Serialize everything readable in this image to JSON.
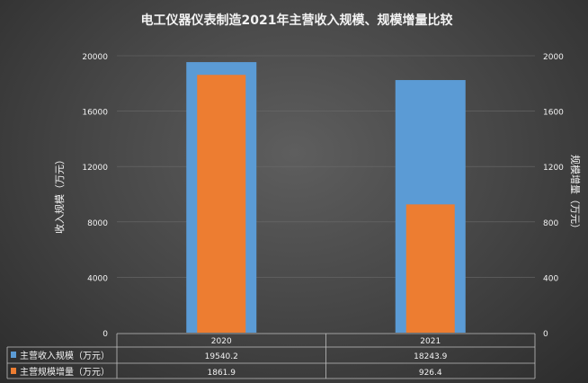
{
  "chart_data": {
    "type": "bar",
    "title": "电工仪器仪表制造2021年主营收入规模、规模增量比较",
    "categories": [
      "2020",
      "2021"
    ],
    "series": [
      {
        "name": "主营收入规模（万元）",
        "values": [
          19540.2,
          18243.9
        ],
        "color": "#5b9bd5",
        "axis": "left"
      },
      {
        "name": "主营规模增量（万元）",
        "values": [
          1861.9,
          926.4
        ],
        "color": "#ed7d31",
        "axis": "right"
      }
    ],
    "ylabel": "收入规模（万元）",
    "y2label": "规模增量（万元）",
    "ylim": [
      0,
      20000
    ],
    "y2lim": [
      0,
      2000
    ],
    "yticks": [
      "0",
      "4000",
      "8000",
      "12000",
      "16000",
      "20000"
    ],
    "y2ticks": [
      "0",
      "400",
      "800",
      "1200",
      "1600",
      "2000"
    ],
    "grid": true,
    "legend": "data-table",
    "table_values": [
      [
        "19540.2",
        "18243.9"
      ],
      [
        "1861.9",
        "926.4"
      ]
    ]
  }
}
